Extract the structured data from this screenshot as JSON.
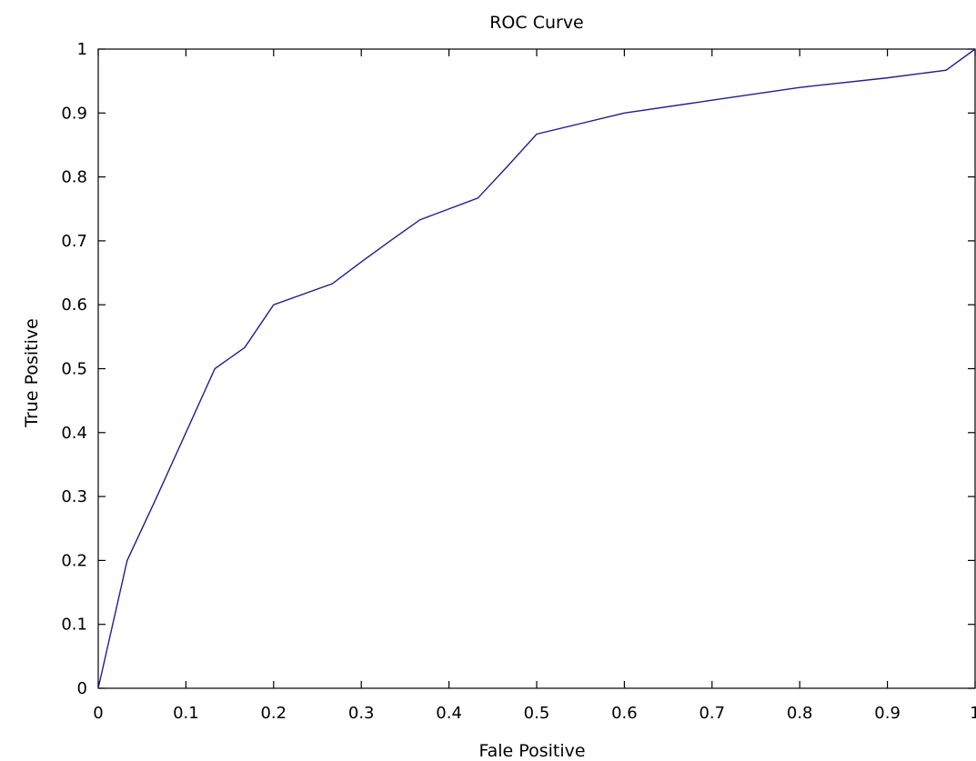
{
  "chart_data": {
    "type": "line",
    "title": "ROC Curve",
    "xlabel": "Fale Positive",
    "ylabel": "True Positive",
    "xlim": [
      0,
      1
    ],
    "ylim": [
      0,
      1
    ],
    "grid": false,
    "x_ticks": [
      "0",
      "0.1",
      "0.2",
      "0.3",
      "0.4",
      "0.5",
      "0.6",
      "0.7",
      "0.8",
      "0.9",
      "1"
    ],
    "y_ticks": [
      "0",
      "0.1",
      "0.2",
      "0.3",
      "0.4",
      "0.5",
      "0.6",
      "0.7",
      "0.8",
      "0.9",
      "1"
    ],
    "series": [
      {
        "color": "#1f1f8f",
        "x": [
          0,
          0.033,
          0.067,
          0.1,
          0.133,
          0.167,
          0.2,
          0.267,
          0.3,
          0.333,
          0.367,
          0.4,
          0.433,
          0.467,
          0.5,
          0.6,
          0.7,
          0.8,
          0.9,
          0.967,
          1.0
        ],
        "y": [
          0,
          0.2,
          0.3,
          0.4,
          0.5,
          0.533,
          0.6,
          0.633,
          0.667,
          0.7,
          0.733,
          0.75,
          0.767,
          0.817,
          0.867,
          0.9,
          0.92,
          0.94,
          0.955,
          0.967,
          1.0
        ]
      }
    ]
  }
}
